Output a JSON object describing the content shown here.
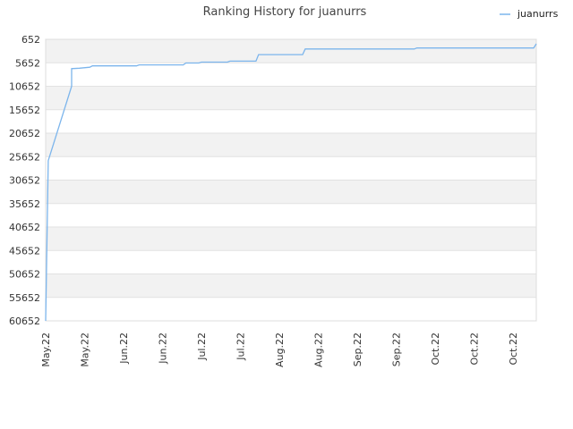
{
  "chart_data": {
    "type": "line",
    "title": "Ranking History for juanurrs",
    "xlabel": "",
    "ylabel": "",
    "y_inverted": true,
    "ylim": [
      652,
      60652
    ],
    "yticks": [
      652,
      5652,
      10652,
      15652,
      20652,
      25652,
      30652,
      35652,
      40652,
      45652,
      50652,
      55652,
      60652
    ],
    "xlim": [
      "2022-05-01",
      "2022-11-06"
    ],
    "xticks": [
      {
        "date": "2022-05-01",
        "label": "May.22"
      },
      {
        "date": "2022-05-16",
        "label": "May.22"
      },
      {
        "date": "2022-05-31",
        "label": "Jun.22"
      },
      {
        "date": "2022-06-15",
        "label": "Jun.22"
      },
      {
        "date": "2022-06-30",
        "label": "Jul.22"
      },
      {
        "date": "2022-07-15",
        "label": "Jul.22"
      },
      {
        "date": "2022-07-30",
        "label": "Aug.22"
      },
      {
        "date": "2022-08-14",
        "label": "Aug.22"
      },
      {
        "date": "2022-08-29",
        "label": "Sep.22"
      },
      {
        "date": "2022-09-13",
        "label": "Sep.22"
      },
      {
        "date": "2022-09-28",
        "label": "Oct.22"
      },
      {
        "date": "2022-10-13",
        "label": "Oct.22"
      },
      {
        "date": "2022-10-28",
        "label": "Oct.22"
      }
    ],
    "grid": true,
    "banded_background": true,
    "legend": {
      "position": "top-right",
      "entries": [
        "juanurrs"
      ]
    },
    "series": [
      {
        "name": "juanurrs",
        "color": "#7cb5ec",
        "points": [
          {
            "date": "2022-05-01",
            "rank": 60652
          },
          {
            "date": "2022-05-02",
            "rank": 26500
          },
          {
            "date": "2022-05-11",
            "rank": 10652
          },
          {
            "date": "2022-05-11",
            "rank": 6900
          },
          {
            "date": "2022-05-14",
            "rank": 6800
          },
          {
            "date": "2022-05-18",
            "rank": 6600
          },
          {
            "date": "2022-05-19",
            "rank": 6300
          },
          {
            "date": "2022-06-05",
            "rank": 6300
          },
          {
            "date": "2022-06-06",
            "rank": 6100
          },
          {
            "date": "2022-06-23",
            "rank": 6100
          },
          {
            "date": "2022-06-24",
            "rank": 5700
          },
          {
            "date": "2022-06-29",
            "rank": 5700
          },
          {
            "date": "2022-06-30",
            "rank": 5500
          },
          {
            "date": "2022-07-10",
            "rank": 5500
          },
          {
            "date": "2022-07-11",
            "rank": 5300
          },
          {
            "date": "2022-07-21",
            "rank": 5300
          },
          {
            "date": "2022-07-22",
            "rank": 3900
          },
          {
            "date": "2022-08-08",
            "rank": 3900
          },
          {
            "date": "2022-08-09",
            "rank": 2700
          },
          {
            "date": "2022-09-20",
            "rank": 2700
          },
          {
            "date": "2022-09-21",
            "rank": 2500
          },
          {
            "date": "2022-11-05",
            "rank": 2500
          },
          {
            "date": "2022-11-06",
            "rank": 1600
          }
        ]
      }
    ]
  }
}
